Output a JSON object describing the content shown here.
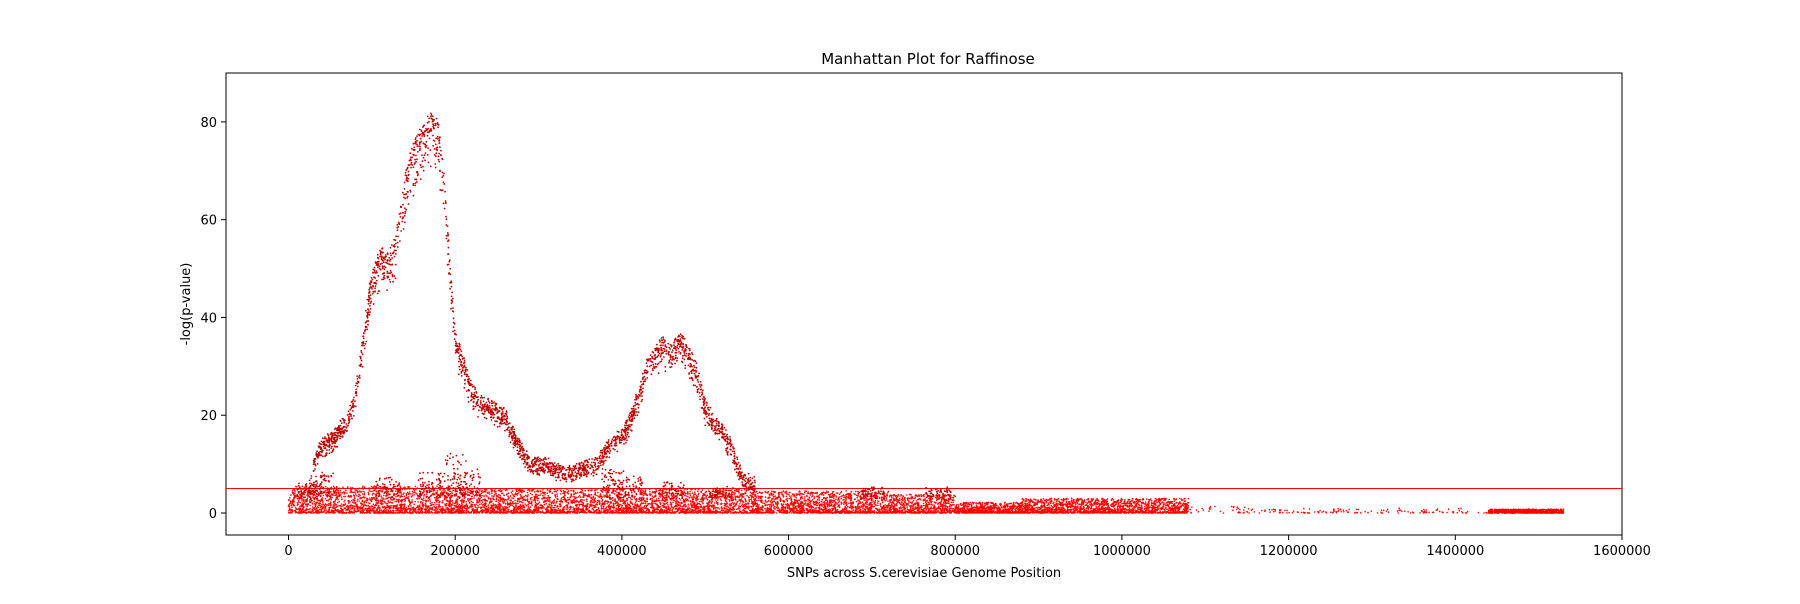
{
  "chart_data": {
    "type": "scatter",
    "title": "Manhattan Plot for Raffinose",
    "xlabel": "SNPs across S.cerevisiae Genome Position",
    "ylabel": "-log(p-value)",
    "xlim": [
      -75000,
      1600000
    ],
    "ylim": [
      -4.5,
      90
    ],
    "x_ticks": [
      0,
      200000,
      400000,
      600000,
      800000,
      1000000,
      1200000,
      1400000,
      1600000
    ],
    "x_tick_labels": [
      "0",
      "200000",
      "400000",
      "600000",
      "800000",
      "1000000",
      "1200000",
      "1400000",
      "1600000"
    ],
    "y_ticks": [
      0,
      20,
      40,
      60,
      80
    ],
    "y_tick_labels": [
      "0",
      "20",
      "40",
      "60",
      "80"
    ],
    "threshold": 5,
    "grid": false,
    "legend": "none",
    "colors": {
      "points": "#ff0000",
      "threshold": "#ff0000",
      "axes": "#000000"
    },
    "peak_profile": [
      [
        30000,
        10
      ],
      [
        40000,
        14
      ],
      [
        50000,
        15
      ],
      [
        60000,
        17
      ],
      [
        70000,
        19
      ],
      [
        80000,
        24
      ],
      [
        90000,
        36
      ],
      [
        95000,
        43
      ],
      [
        100000,
        48
      ],
      [
        110000,
        53
      ],
      [
        120000,
        52
      ],
      [
        130000,
        57
      ],
      [
        140000,
        68
      ],
      [
        150000,
        75
      ],
      [
        160000,
        78
      ],
      [
        170000,
        81
      ],
      [
        180000,
        79
      ],
      [
        185000,
        72
      ],
      [
        190000,
        60
      ],
      [
        200000,
        36
      ],
      [
        210000,
        31
      ],
      [
        220000,
        25
      ],
      [
        230000,
        23
      ],
      [
        250000,
        21
      ],
      [
        260000,
        20
      ],
      [
        270000,
        16
      ],
      [
        290000,
        10
      ],
      [
        310000,
        10
      ],
      [
        330000,
        8
      ],
      [
        350000,
        9
      ],
      [
        370000,
        10
      ],
      [
        380000,
        13
      ],
      [
        390000,
        15
      ],
      [
        400000,
        16
      ],
      [
        410000,
        19
      ],
      [
        430000,
        30
      ],
      [
        440000,
        33
      ],
      [
        450000,
        35
      ],
      [
        460000,
        33
      ],
      [
        470000,
        36
      ],
      [
        480000,
        33
      ],
      [
        490000,
        29
      ],
      [
        500000,
        22
      ],
      [
        510000,
        19
      ],
      [
        520000,
        17
      ],
      [
        530000,
        14
      ],
      [
        545000,
        7
      ],
      [
        560000,
        6
      ],
      [
        580000,
        4
      ],
      [
        600000,
        4
      ],
      [
        650000,
        5
      ],
      [
        700000,
        5
      ],
      [
        750000,
        4
      ],
      [
        780000,
        4
      ],
      [
        800000,
        3
      ],
      [
        850000,
        2
      ],
      [
        900000,
        3
      ],
      [
        950000,
        2
      ],
      [
        1000000,
        2
      ],
      [
        1080000,
        1
      ],
      [
        1130000,
        2
      ],
      [
        1200000,
        1
      ],
      [
        1360000,
        1
      ],
      [
        1400000,
        0.7
      ],
      [
        1520000,
        0.7
      ]
    ],
    "secondary_clusters": [
      [
        25000,
        6
      ],
      [
        40000,
        8
      ],
      [
        120000,
        7
      ],
      [
        170000,
        8
      ],
      [
        200000,
        12
      ],
      [
        215000,
        9
      ],
      [
        390000,
        9
      ],
      [
        410000,
        7
      ],
      [
        460000,
        6
      ],
      [
        520000,
        5
      ],
      [
        700000,
        5
      ],
      [
        780000,
        5
      ]
    ],
    "background_bands": [
      [
        0,
        200000,
        5.5
      ],
      [
        200000,
        420000,
        5.0
      ],
      [
        420000,
        560000,
        5.0
      ],
      [
        560000,
        720000,
        4.5
      ],
      [
        720000,
        800000,
        3.8
      ],
      [
        800000,
        880000,
        2.2
      ],
      [
        880000,
        1080000,
        3.0
      ],
      [
        1080000,
        1200000,
        1.5
      ],
      [
        1200000,
        1440000,
        1.0
      ],
      [
        1440000,
        1530000,
        0.8
      ]
    ],
    "sparse_segments": [
      [
        1080000,
        1440000
      ]
    ]
  }
}
